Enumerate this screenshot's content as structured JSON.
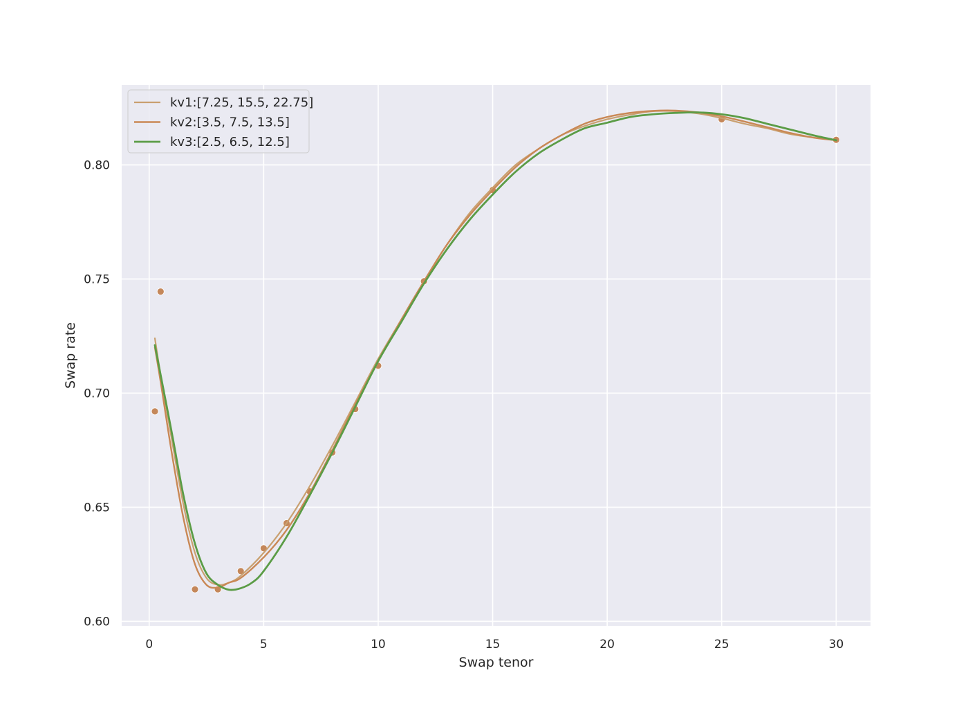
{
  "chart_data": {
    "type": "line",
    "title": "",
    "xlabel": "Swap tenor",
    "ylabel": "Swap rate",
    "xlim": [
      -1.2,
      31.5
    ],
    "ylim": [
      0.598,
      0.835
    ],
    "xticks": [
      0,
      5,
      10,
      15,
      20,
      25,
      30
    ],
    "yticks": [
      0.6,
      0.65,
      0.7,
      0.75,
      0.8
    ],
    "xtick_labels": [
      "0",
      "5",
      "10",
      "15",
      "20",
      "25",
      "30"
    ],
    "ytick_labels": [
      "0.60",
      "0.65",
      "0.70",
      "0.75",
      "0.80"
    ],
    "grid": true,
    "legend_position": "top-left",
    "colors": {
      "background": "#eaeaf2",
      "grid": "#ffffff",
      "points": "#c4875a",
      "kv1": "#c9a070",
      "kv2": "#c98855",
      "kv3": "#5b9c46"
    },
    "points": {
      "x": [
        0.25,
        0.5,
        2,
        3,
        4,
        5,
        6,
        7,
        8,
        9,
        10,
        12,
        15,
        25,
        30
      ],
      "y": [
        0.692,
        0.7445,
        0.614,
        0.614,
        0.622,
        0.632,
        0.643,
        0.657,
        0.674,
        0.693,
        0.712,
        0.749,
        0.789,
        0.82,
        0.811
      ]
    },
    "series": [
      {
        "name": "kv1:[7.25, 15.5, 22.75]",
        "x": [
          0.25,
          0.5,
          1,
          1.5,
          2,
          2.5,
          3,
          3.5,
          4,
          5,
          6,
          7,
          8,
          9,
          10,
          11,
          12,
          13,
          14,
          15,
          16,
          17,
          18,
          19,
          20,
          21,
          22,
          23,
          24,
          25,
          26,
          27,
          28,
          29,
          30
        ],
        "y": [
          0.724,
          0.708,
          0.679,
          0.651,
          0.63,
          0.619,
          0.616,
          0.617,
          0.62,
          0.63,
          0.643,
          0.659,
          0.677,
          0.696,
          0.715,
          0.732,
          0.749,
          0.765,
          0.779,
          0.79,
          0.8,
          0.807,
          0.813,
          0.817,
          0.82,
          0.822,
          0.8235,
          0.8235,
          0.8225,
          0.8205,
          0.818,
          0.816,
          0.8135,
          0.812,
          0.8108
        ]
      },
      {
        "name": "kv2:[3.5, 7.5, 13.5]",
        "x": [
          0.25,
          0.5,
          1,
          1.5,
          2,
          2.5,
          3,
          3.5,
          4,
          5,
          6,
          7,
          8,
          9,
          10,
          11,
          12,
          13,
          14,
          15,
          16,
          17,
          18,
          19,
          20,
          21,
          22,
          23,
          24,
          25,
          26,
          27,
          28,
          29,
          30
        ],
        "y": [
          0.72,
          0.705,
          0.673,
          0.645,
          0.625,
          0.616,
          0.6148,
          0.617,
          0.619,
          0.628,
          0.64,
          0.656,
          0.675,
          0.695,
          0.714,
          0.732,
          0.749,
          0.765,
          0.778,
          0.789,
          0.799,
          0.807,
          0.813,
          0.818,
          0.821,
          0.8228,
          0.8237,
          0.8238,
          0.823,
          0.8213,
          0.819,
          0.8165,
          0.814,
          0.812,
          0.8108
        ]
      },
      {
        "name": "kv3:[2.5, 6.5, 12.5]",
        "x": [
          0.25,
          0.5,
          1,
          1.5,
          2,
          2.5,
          3,
          3.5,
          4,
          4.5,
          5,
          6,
          7,
          8,
          9,
          10,
          11,
          12,
          13,
          14,
          15,
          16,
          17,
          18,
          19,
          20,
          21,
          22,
          23,
          24,
          25,
          26,
          27,
          28,
          29,
          30
        ],
        "y": [
          0.721,
          0.708,
          0.682,
          0.655,
          0.634,
          0.621,
          0.616,
          0.6138,
          0.6145,
          0.617,
          0.622,
          0.637,
          0.655,
          0.674,
          0.694,
          0.714,
          0.731,
          0.748,
          0.763,
          0.776,
          0.787,
          0.797,
          0.805,
          0.811,
          0.816,
          0.8185,
          0.821,
          0.8222,
          0.8228,
          0.823,
          0.8222,
          0.8205,
          0.818,
          0.8155,
          0.813,
          0.8108
        ]
      }
    ]
  }
}
